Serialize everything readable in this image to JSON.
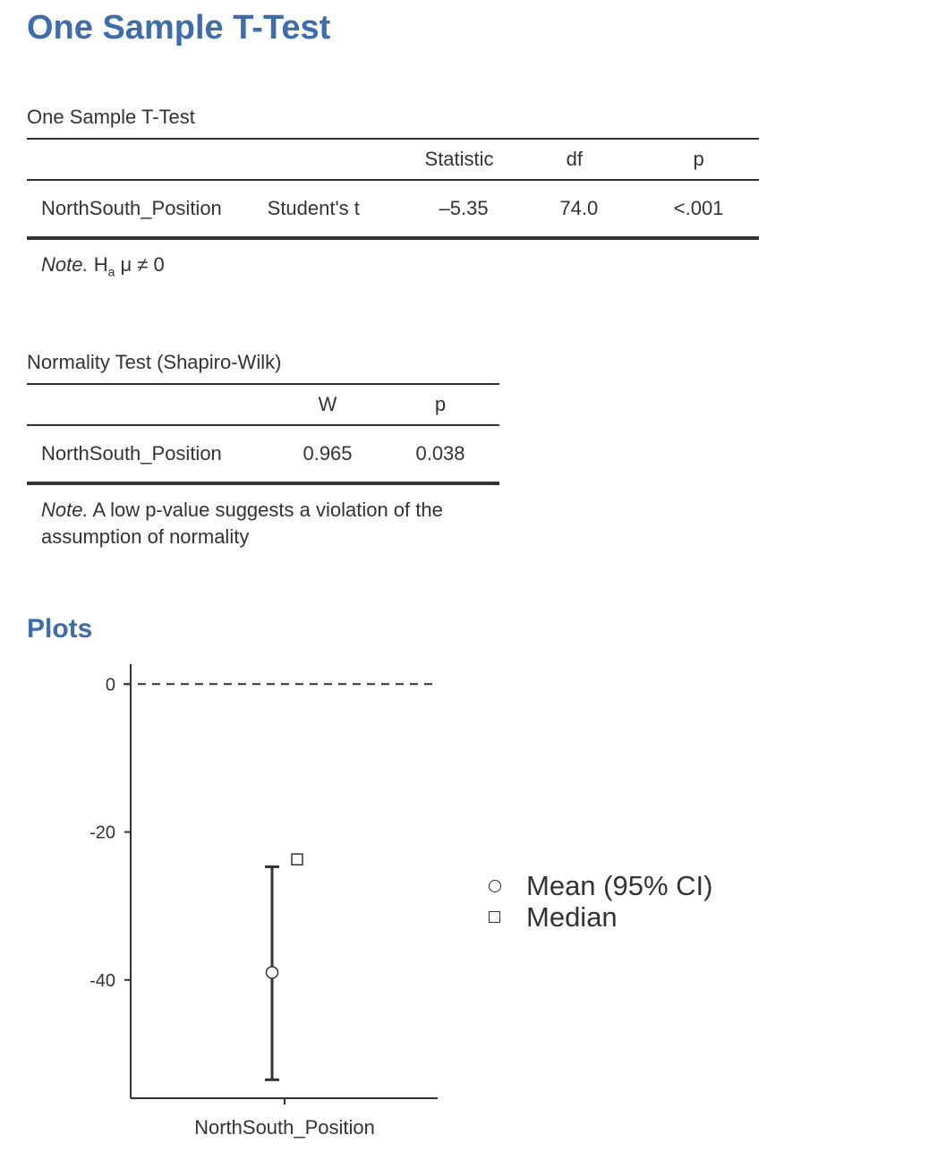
{
  "page_title": "One Sample T-Test",
  "ttest": {
    "caption": "One Sample T-Test",
    "headers": [
      "",
      "",
      "Statistic",
      "df",
      "p"
    ],
    "row": {
      "variable": "NorthSouth_Position",
      "test": "Student's t",
      "statistic": "–5.35",
      "df": "74.0",
      "p": "<.001"
    },
    "note_prefix": "Note.",
    "note_text": "H",
    "note_subscript": "a",
    "note_suffix": " μ ≠ 0"
  },
  "normality": {
    "caption": "Normality Test (Shapiro-Wilk)",
    "headers": [
      "",
      "W",
      "p"
    ],
    "row": {
      "variable": "NorthSouth_Position",
      "W": "0.965",
      "p": "0.038"
    },
    "note_prefix": "Note.",
    "note_text": " A low p-value suggests a violation of the assumption of normality"
  },
  "plots_title": "Plots",
  "legend": {
    "mean_label": "Mean (95% CI)",
    "median_label": "Median"
  },
  "chart_data": {
    "type": "scatter",
    "categories": [
      "NorthSouth_Position"
    ],
    "xlabel": "",
    "ylabel": "",
    "ylim": [
      -56,
      2.7
    ],
    "yticks": [
      0,
      -20,
      -40
    ],
    "reference_line": 0,
    "mean": -39,
    "ci_lower": -53.5,
    "ci_upper": -24.7,
    "median": -23.7,
    "legend_position": "right"
  }
}
